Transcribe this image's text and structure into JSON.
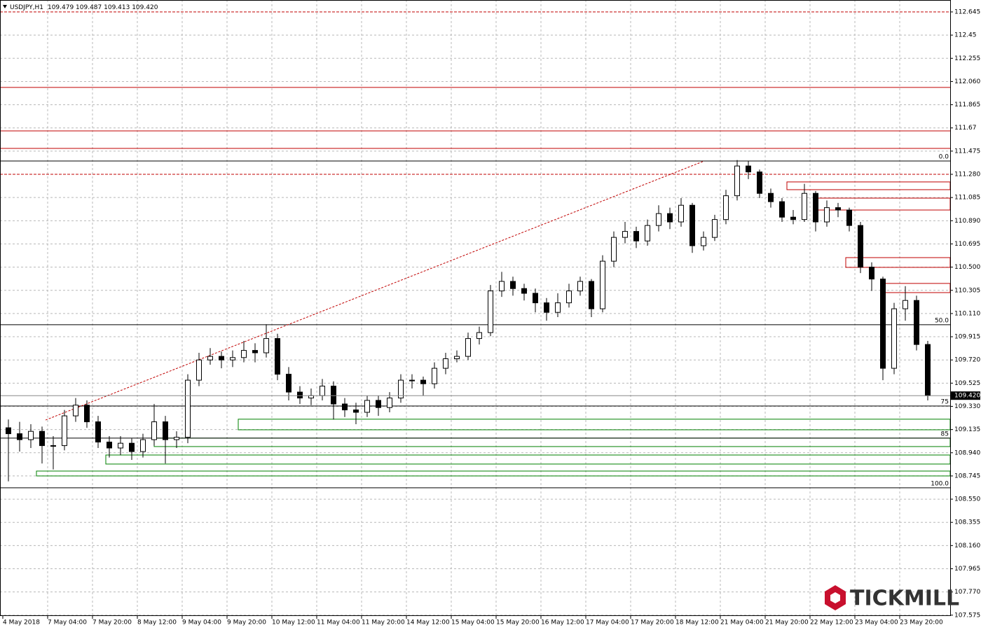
{
  "chart_data": {
    "type": "candlestick",
    "symbol": "USDJPY,H1",
    "quote": "109.479 109.487 109.413 109.420",
    "brand": "TICKMILL",
    "bull_color": "#ffffff",
    "bear_color": "#000000",
    "grid": true,
    "ylim": [
      107.568,
      112.745
    ],
    "yticks": [
      112.645,
      112.45,
      112.255,
      {
        "value": 112.06,
        "label": "112.060"
      },
      111.865,
      111.67,
      111.475,
      {
        "value": 111.28,
        "label": "111.280"
      },
      111.085,
      {
        "value": 110.89,
        "label": "110.890"
      },
      110.695,
      {
        "value": 110.5,
        "label": "110.500"
      },
      110.305,
      {
        "value": 110.11,
        "label": "110.110"
      },
      109.915,
      {
        "value": 109.72,
        "label": "109.720"
      },
      109.525,
      {
        "value": 109.33,
        "label": "109.330"
      },
      109.135,
      {
        "value": 108.94,
        "label": "108.940"
      },
      108.745,
      {
        "value": 108.55,
        "label": "108.550"
      },
      108.355,
      {
        "value": 108.16,
        "label": "108.160"
      },
      107.965,
      {
        "value": 107.77,
        "label": "107.770"
      },
      107.575
    ],
    "yticks_fix": null,
    "categories": [
      "4 May 2018",
      "7 May 04:00",
      "7 May 20:00",
      "8 May 12:00",
      "9 May 04:00",
      "9 May 20:00",
      "10 May 12:00",
      "11 May 04:00",
      "11 May 20:00",
      "14 May 12:00",
      "15 May 04:00",
      "15 May 20:00",
      "16 May 12:00",
      "17 May 04:00",
      "17 May 20:00",
      "18 May 12:00",
      "21 May 04:00",
      "21 May 20:00",
      "22 May 12:00",
      "23 May 04:00",
      "23 May 20:00"
    ],
    "last": {
      "value": 109.42,
      "label": "109.420"
    },
    "levels": [
      {
        "price": 112.645,
        "color": "#c00000",
        "dash": true
      },
      {
        "price": 112.01,
        "color": "#c00000",
        "dash": false
      },
      {
        "price": 111.645,
        "color": "#c00000",
        "dash": false
      },
      {
        "price": 111.498,
        "color": "#c00000",
        "dash": false
      },
      {
        "price": 111.28,
        "color": "#c00000",
        "dash": true
      }
    ],
    "fib": [
      {
        "price": 111.392,
        "label": "0.0"
      },
      {
        "price": 110.016,
        "label": "50.0"
      },
      {
        "price": 109.333,
        "label": "75"
      },
      {
        "price": 109.063,
        "label": "85"
      },
      {
        "price": 108.645,
        "label": "100.0"
      }
    ],
    "zones": [
      {
        "top": 111.216,
        "bottom": 111.151,
        "color": "#c00000"
      },
      {
        "top": 111.08,
        "bottom": 110.98,
        "color": "#c00000"
      },
      {
        "top": 110.58,
        "bottom": 110.498,
        "color": "#c00000"
      },
      {
        "top": 110.363,
        "bottom": 110.286,
        "color": "#c00000"
      },
      {
        "top": 109.222,
        "bottom": 109.133,
        "color": "#008000"
      },
      {
        "top": 109.063,
        "bottom": 108.992,
        "color": "#008000"
      },
      {
        "top": 108.921,
        "bottom": 108.845,
        "color": "#008000"
      },
      {
        "top": 108.786,
        "bottom": 108.745,
        "color": "#008000"
      }
    ],
    "trendline": {
      "from": 109.215,
      "to": 111.392,
      "color": "#c00000"
    },
    "ohlc": [
      [
        109.15,
        109.22,
        108.7,
        109.1
      ],
      [
        109.1,
        109.2,
        108.95,
        109.05
      ],
      [
        109.05,
        109.18,
        108.98,
        109.12
      ],
      [
        109.12,
        109.16,
        108.85,
        109.0
      ],
      [
        109.0,
        109.08,
        108.8,
        109.0
      ],
      [
        109.0,
        109.3,
        108.96,
        109.25
      ],
      [
        109.25,
        109.4,
        109.2,
        109.34
      ],
      [
        109.34,
        109.38,
        109.15,
        109.2
      ],
      [
        109.2,
        109.25,
        108.98,
        109.03
      ],
      [
        109.03,
        109.08,
        108.9,
        108.98
      ],
      [
        108.98,
        109.08,
        108.92,
        109.02
      ],
      [
        109.02,
        109.06,
        108.88,
        108.95
      ],
      [
        108.95,
        109.1,
        108.9,
        109.05
      ],
      [
        109.05,
        109.35,
        109.0,
        109.2
      ],
      [
        109.2,
        109.25,
        108.85,
        109.05
      ],
      [
        109.05,
        109.12,
        108.98,
        109.07
      ],
      [
        109.07,
        109.6,
        109.02,
        109.55
      ],
      [
        109.55,
        109.78,
        109.5,
        109.72
      ],
      [
        109.72,
        109.82,
        109.68,
        109.75
      ],
      [
        109.75,
        109.79,
        109.65,
        109.72
      ],
      [
        109.72,
        109.8,
        109.66,
        109.74
      ],
      [
        109.74,
        109.88,
        109.7,
        109.8
      ],
      [
        109.8,
        109.86,
        109.7,
        109.78
      ],
      [
        109.78,
        110.02,
        109.74,
        109.9
      ],
      [
        109.9,
        109.94,
        109.55,
        109.6
      ],
      [
        109.6,
        109.66,
        109.38,
        109.45
      ],
      [
        109.45,
        109.5,
        109.35,
        109.4
      ],
      [
        109.4,
        109.48,
        109.34,
        109.42
      ],
      [
        109.42,
        109.56,
        109.38,
        109.5
      ],
      [
        109.5,
        109.54,
        109.22,
        109.35
      ],
      [
        109.35,
        109.4,
        109.24,
        109.3
      ],
      [
        109.3,
        109.36,
        109.18,
        109.28
      ],
      [
        109.28,
        109.42,
        109.24,
        109.38
      ],
      [
        109.38,
        109.42,
        109.25,
        109.32
      ],
      [
        109.32,
        109.45,
        109.28,
        109.4
      ],
      [
        109.4,
        109.6,
        109.36,
        109.55
      ],
      [
        109.55,
        109.6,
        109.48,
        109.55
      ],
      [
        109.55,
        109.58,
        109.42,
        109.52
      ],
      [
        109.52,
        109.7,
        109.48,
        109.65
      ],
      [
        109.65,
        109.78,
        109.6,
        109.73
      ],
      [
        109.73,
        109.8,
        109.7,
        109.75
      ],
      [
        109.75,
        109.95,
        109.72,
        109.9
      ],
      [
        109.9,
        110.0,
        109.85,
        109.95
      ],
      [
        109.95,
        110.35,
        109.92,
        110.3
      ],
      [
        110.3,
        110.46,
        110.25,
        110.38
      ],
      [
        110.38,
        110.42,
        110.26,
        110.32
      ],
      [
        110.32,
        110.36,
        110.22,
        110.28
      ],
      [
        110.28,
        110.32,
        110.12,
        110.2
      ],
      [
        110.2,
        110.24,
        110.05,
        110.12
      ],
      [
        110.12,
        110.28,
        110.08,
        110.2
      ],
      [
        110.2,
        110.36,
        110.16,
        110.3
      ],
      [
        110.3,
        110.42,
        110.26,
        110.38
      ],
      [
        110.38,
        110.4,
        110.08,
        110.15
      ],
      [
        110.15,
        110.6,
        110.12,
        110.55
      ],
      [
        110.55,
        110.8,
        110.5,
        110.75
      ],
      [
        110.75,
        110.88,
        110.7,
        110.8
      ],
      [
        110.8,
        110.84,
        110.66,
        110.72
      ],
      [
        110.72,
        110.9,
        110.68,
        110.85
      ],
      [
        110.85,
        111.02,
        110.8,
        110.95
      ],
      [
        110.95,
        111.0,
        110.82,
        110.88
      ],
      [
        110.88,
        111.08,
        110.84,
        111.02
      ],
      [
        111.02,
        111.04,
        110.62,
        110.68
      ],
      [
        110.68,
        110.8,
        110.64,
        110.75
      ],
      [
        110.75,
        110.94,
        110.72,
        110.9
      ],
      [
        110.9,
        111.15,
        110.86,
        111.1
      ],
      [
        111.1,
        111.4,
        111.06,
        111.35
      ],
      [
        111.35,
        111.39,
        111.24,
        111.3
      ],
      [
        111.3,
        111.32,
        111.08,
        111.12
      ],
      [
        111.12,
        111.16,
        111.0,
        111.05
      ],
      [
        111.05,
        111.08,
        110.88,
        110.92
      ],
      [
        110.92,
        110.98,
        110.86,
        110.9
      ],
      [
        110.9,
        111.2,
        110.88,
        111.12
      ],
      [
        111.12,
        111.14,
        110.8,
        110.88
      ],
      [
        110.88,
        111.06,
        110.84,
        111.0
      ],
      [
        111.0,
        111.04,
        110.92,
        110.98
      ],
      [
        110.98,
        111.0,
        110.8,
        110.85
      ],
      [
        110.85,
        110.88,
        110.45,
        110.5
      ],
      [
        110.5,
        110.54,
        110.3,
        110.4
      ],
      [
        110.4,
        110.42,
        109.55,
        109.65
      ],
      [
        109.65,
        110.2,
        109.6,
        110.15
      ],
      [
        110.15,
        110.34,
        110.05,
        110.22
      ],
      [
        110.22,
        110.26,
        109.8,
        109.85
      ],
      [
        109.85,
        109.88,
        109.38,
        109.42
      ]
    ]
  }
}
